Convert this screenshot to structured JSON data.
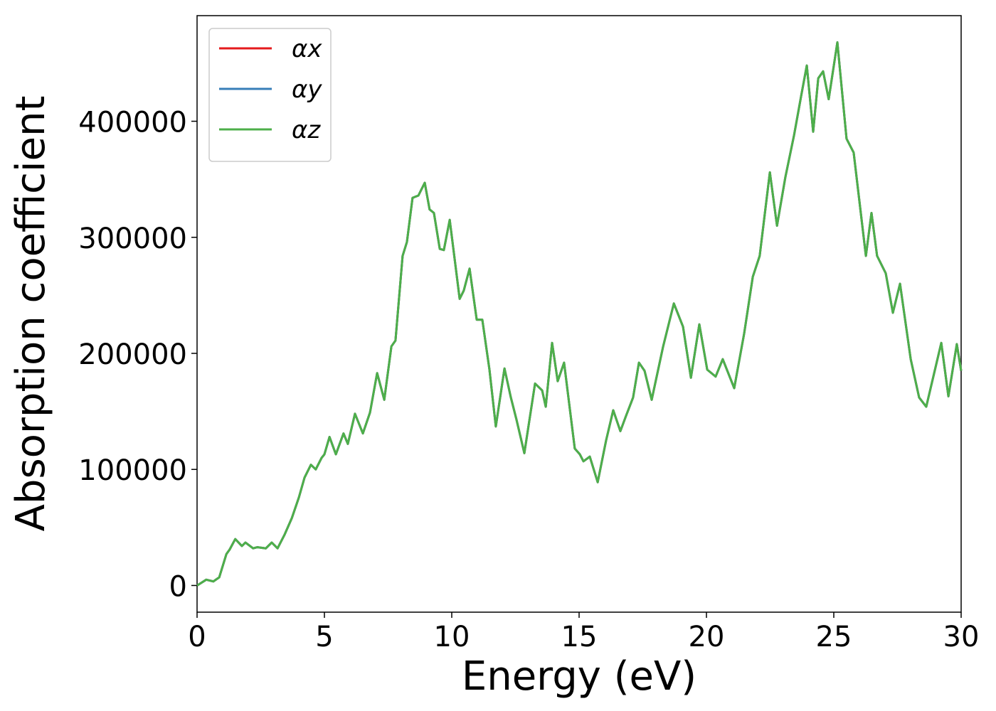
{
  "chart_data": {
    "type": "line",
    "xlabel": "Energy (eV)",
    "ylabel": "Absorption coefficient",
    "x": [
      0,
      0.36,
      0.64,
      0.87,
      1.15,
      1.28,
      1.5,
      1.76,
      1.9,
      2.2,
      2.37,
      2.7,
      2.93,
      3.16,
      3.44,
      3.72,
      4.0,
      4.22,
      4.47,
      4.66,
      4.89,
      5.0,
      5.2,
      5.45,
      5.75,
      5.92,
      6.2,
      6.51,
      6.79,
      7.07,
      7.35,
      7.63,
      7.79,
      8.07,
      8.24,
      8.46,
      8.69,
      8.94,
      9.13,
      9.3,
      9.53,
      9.69,
      9.92,
      10.31,
      10.47,
      10.7,
      10.98,
      11.2,
      11.48,
      11.73,
      12.07,
      12.32,
      12.54,
      12.85,
      13.27,
      13.55,
      13.69,
      13.94,
      14.16,
      14.41,
      14.83,
      15.03,
      15.17,
      15.42,
      15.73,
      16.06,
      16.34,
      16.62,
      16.84,
      17.12,
      17.35,
      17.57,
      17.85,
      18.3,
      18.72,
      19.08,
      19.39,
      19.72,
      20.03,
      20.36,
      20.64,
      21.09,
      21.48,
      21.82,
      22.09,
      22.49,
      22.77,
      23.1,
      23.44,
      23.72,
      23.94,
      24.19,
      24.39,
      24.58,
      24.8,
      25.14,
      25.5,
      25.78,
      26.26,
      26.48,
      26.7,
      27.04,
      27.32,
      27.6,
      28.02,
      28.35,
      28.63,
      29.22,
      29.5,
      29.83,
      30
    ],
    "series": [
      {
        "name": "αx",
        "color": "#e41a1c",
        "values": [
          0,
          5000,
          3500,
          7000,
          27000,
          31000,
          40000,
          34000,
          37000,
          32000,
          33000,
          32000,
          37000,
          32000,
          44000,
          58000,
          76000,
          93000,
          104000,
          100000,
          110000,
          113000,
          128000,
          113000,
          131000,
          122000,
          148000,
          131000,
          149000,
          183000,
          160000,
          206000,
          211000,
          284000,
          296000,
          334000,
          336000,
          347000,
          324000,
          321000,
          290000,
          289000,
          315000,
          247000,
          254000,
          273000,
          229000,
          229000,
          186000,
          137000,
          187000,
          162000,
          143000,
          114000,
          174000,
          168000,
          154000,
          209000,
          176000,
          192000,
          118000,
          113000,
          107000,
          111000,
          89000,
          125000,
          151000,
          133000,
          146000,
          162000,
          192000,
          185000,
          160000,
          206000,
          243000,
          223000,
          179000,
          225000,
          186000,
          180000,
          195000,
          170000,
          217000,
          266000,
          284000,
          356000,
          310000,
          352000,
          388000,
          422000,
          448000,
          391000,
          437000,
          443000,
          419000,
          468000,
          385000,
          373000,
          284000,
          321000,
          284000,
          269000,
          235000,
          260000,
          195000,
          162000,
          154000,
          209000,
          163000,
          208000,
          185000
        ]
      },
      {
        "name": "αy",
        "color": "#377eb8",
        "values": [
          0,
          5000,
          3500,
          7000,
          27000,
          31000,
          40000,
          34000,
          37000,
          32000,
          33000,
          32000,
          37000,
          32000,
          44000,
          58000,
          76000,
          93000,
          104000,
          100000,
          110000,
          113000,
          128000,
          113000,
          131000,
          122000,
          148000,
          131000,
          149000,
          183000,
          160000,
          206000,
          211000,
          284000,
          296000,
          334000,
          336000,
          347000,
          324000,
          321000,
          290000,
          289000,
          315000,
          247000,
          254000,
          273000,
          229000,
          229000,
          186000,
          137000,
          187000,
          162000,
          143000,
          114000,
          174000,
          168000,
          154000,
          209000,
          176000,
          192000,
          118000,
          113000,
          107000,
          111000,
          89000,
          125000,
          151000,
          133000,
          146000,
          162000,
          192000,
          185000,
          160000,
          206000,
          243000,
          223000,
          179000,
          225000,
          186000,
          180000,
          195000,
          170000,
          217000,
          266000,
          284000,
          356000,
          310000,
          352000,
          388000,
          422000,
          448000,
          391000,
          437000,
          443000,
          419000,
          468000,
          385000,
          373000,
          284000,
          321000,
          284000,
          269000,
          235000,
          260000,
          195000,
          162000,
          154000,
          209000,
          163000,
          208000,
          185000
        ]
      },
      {
        "name": "αz",
        "color": "#4daf4a",
        "values": [
          0,
          5000,
          3500,
          7000,
          27000,
          31000,
          40000,
          34000,
          37000,
          32000,
          33000,
          32000,
          37000,
          32000,
          44000,
          58000,
          76000,
          93000,
          104000,
          100000,
          110000,
          113000,
          128000,
          113000,
          131000,
          122000,
          148000,
          131000,
          149000,
          183000,
          160000,
          206000,
          211000,
          284000,
          296000,
          334000,
          336000,
          347000,
          324000,
          321000,
          290000,
          289000,
          315000,
          247000,
          254000,
          273000,
          229000,
          229000,
          186000,
          137000,
          187000,
          162000,
          143000,
          114000,
          174000,
          168000,
          154000,
          209000,
          176000,
          192000,
          118000,
          113000,
          107000,
          111000,
          89000,
          125000,
          151000,
          133000,
          146000,
          162000,
          192000,
          185000,
          160000,
          206000,
          243000,
          223000,
          179000,
          225000,
          186000,
          180000,
          195000,
          170000,
          217000,
          266000,
          284000,
          356000,
          310000,
          352000,
          388000,
          422000,
          448000,
          391000,
          437000,
          443000,
          419000,
          468000,
          385000,
          373000,
          284000,
          321000,
          284000,
          269000,
          235000,
          260000,
          195000,
          162000,
          154000,
          209000,
          163000,
          208000,
          185000
        ]
      }
    ],
    "xlim": [
      0,
      30
    ],
    "xticks": [
      0,
      5,
      10,
      15,
      20,
      25,
      30
    ],
    "ylim": [
      -23000,
      491000
    ],
    "yticks": [
      0,
      100000,
      200000,
      300000,
      400000
    ],
    "grid": false,
    "legend": "upper left"
  }
}
